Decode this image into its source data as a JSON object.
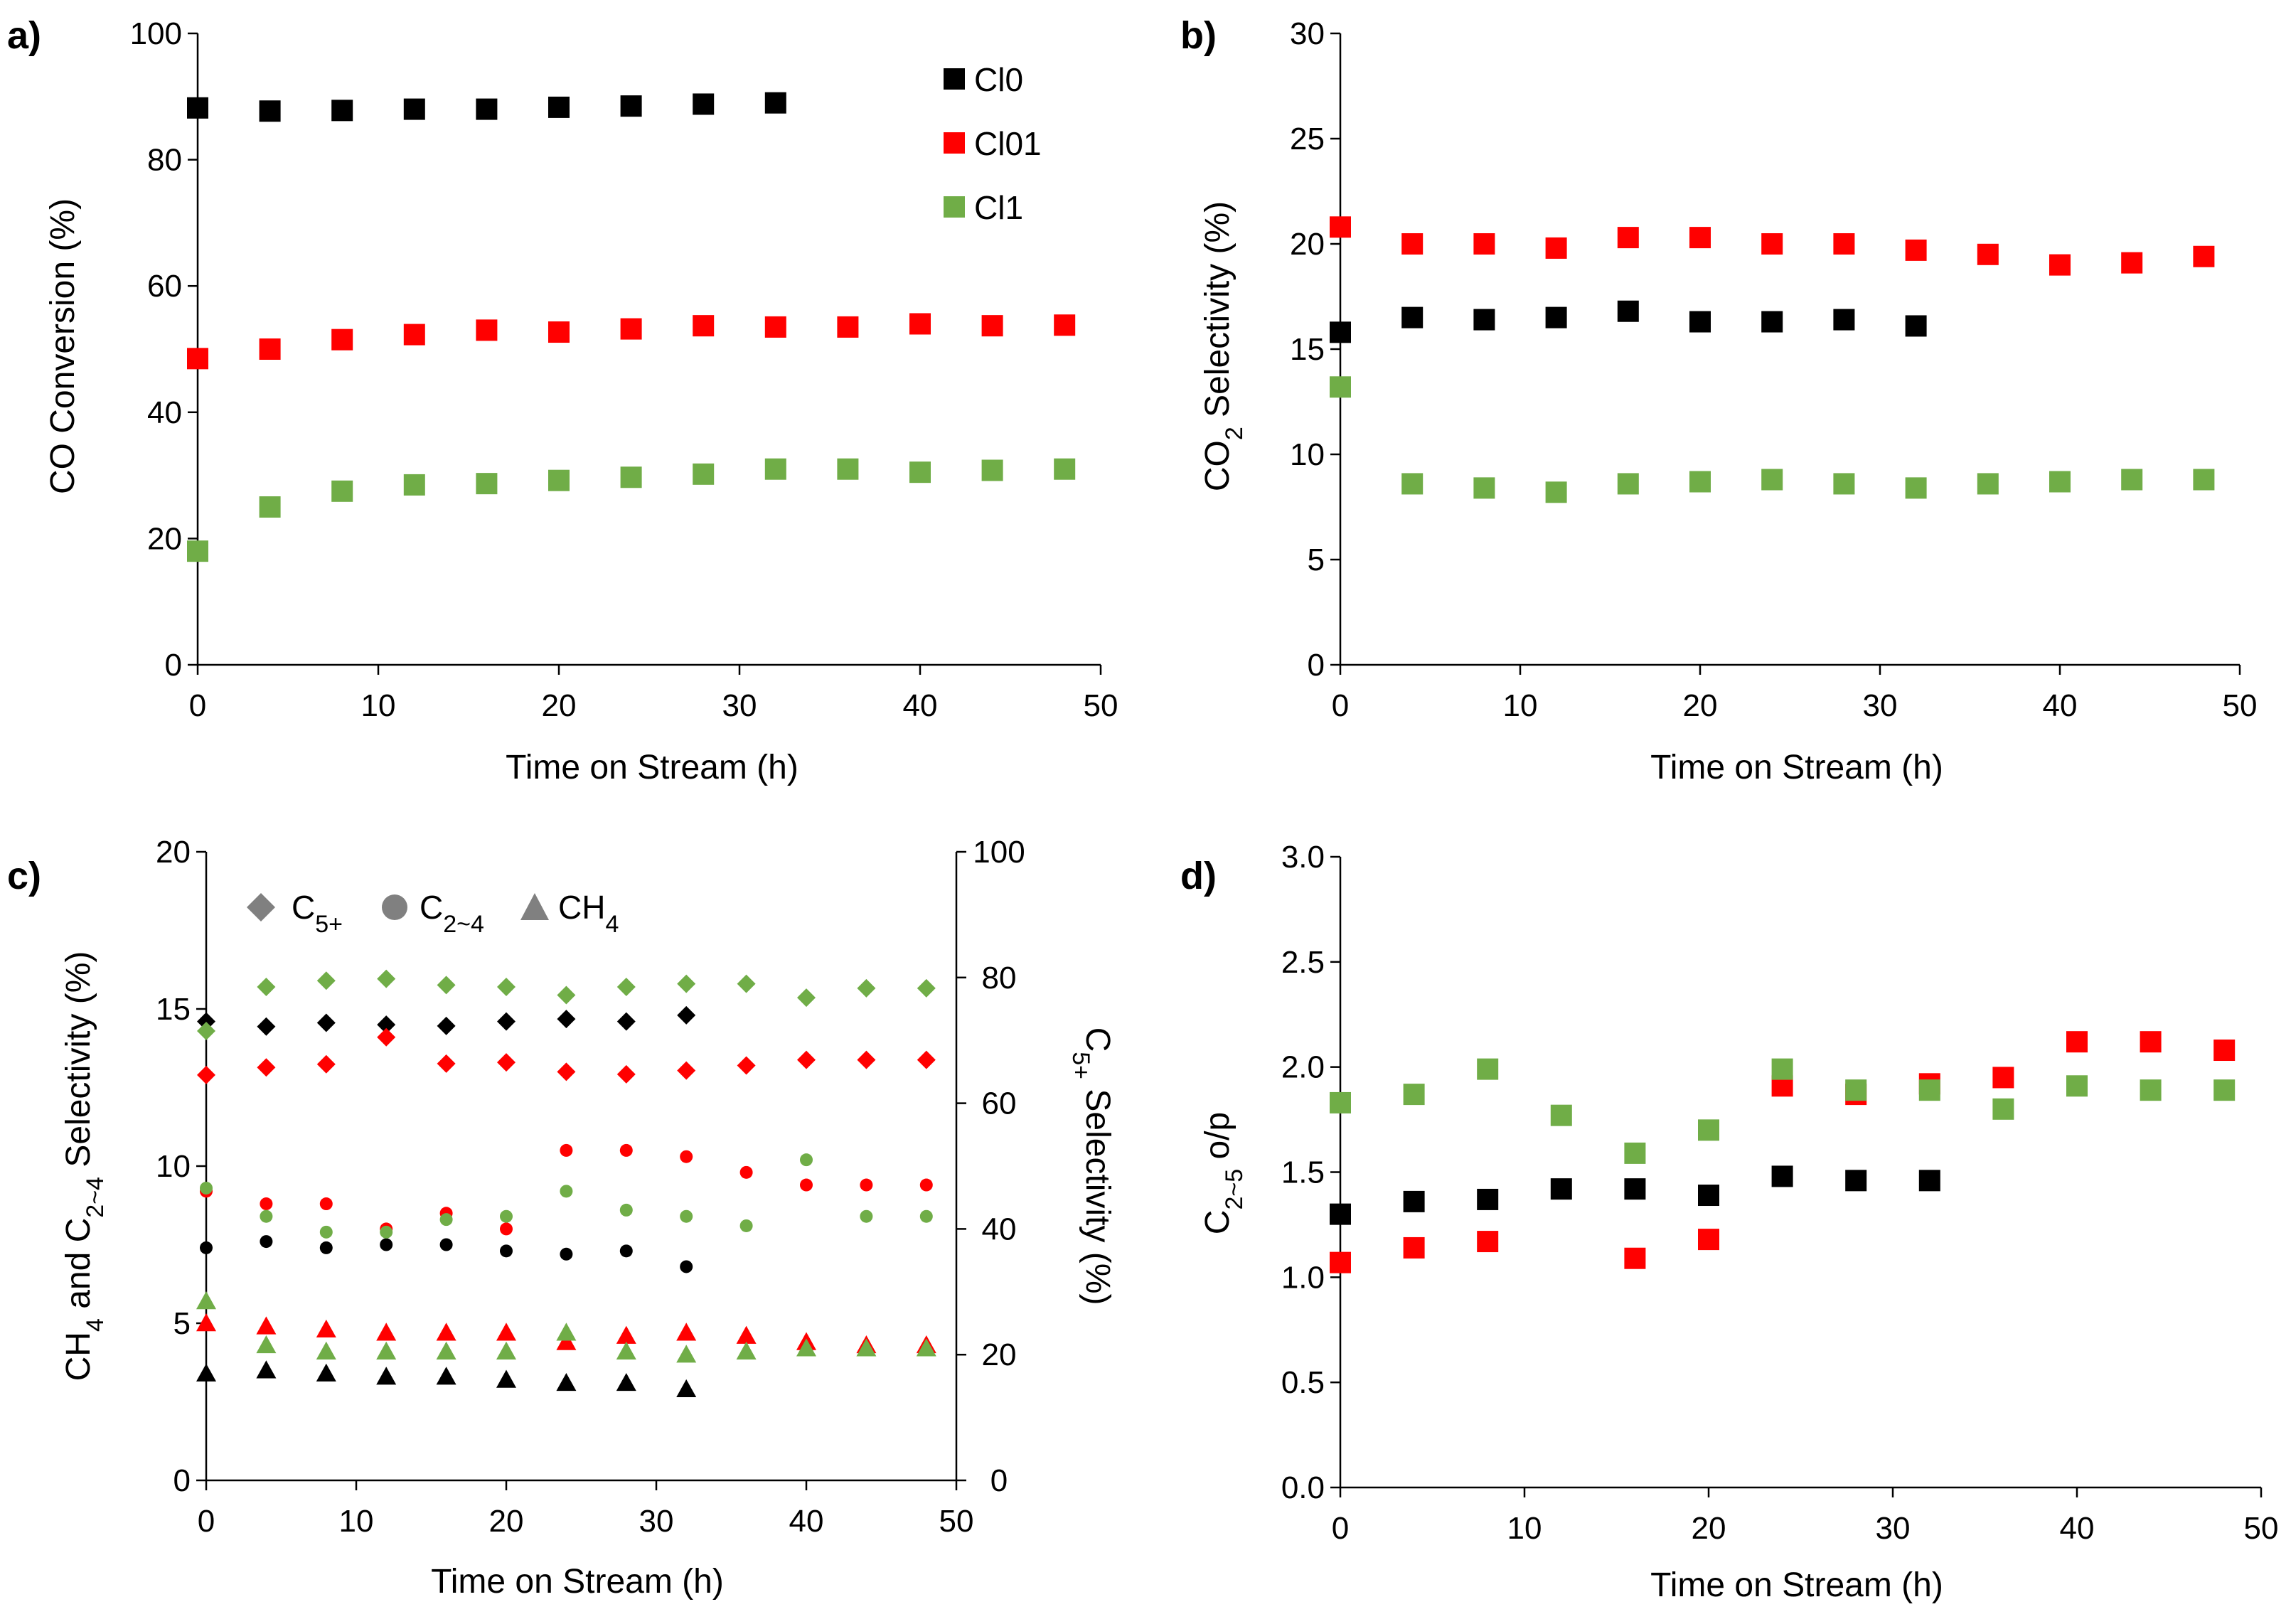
{
  "colors": {
    "Cl0": "#000000",
    "Cl01": "#ff0000",
    "Cl1": "#70ad47",
    "legend_gray": "#808080"
  },
  "chart_data": [
    {
      "id": "a",
      "panel_label": "a)",
      "type": "scatter",
      "xlabel": "Time on Stream (h)",
      "ylabel": "CO Conversion (%)",
      "xlim": [
        0,
        50
      ],
      "ylim": [
        0,
        100
      ],
      "xticks": [
        "0",
        "10",
        "20",
        "30",
        "40",
        "50"
      ],
      "yticks": [
        "0",
        "20",
        "40",
        "60",
        "80",
        "100"
      ],
      "legend": [
        "Cl0",
        "Cl01",
        "Cl1"
      ],
      "series": [
        {
          "name": "Cl0",
          "color": "#000000",
          "marker": "square",
          "x": [
            0,
            4,
            8,
            12,
            16,
            20,
            24,
            28,
            32
          ],
          "y": [
            88.2,
            87.7,
            87.8,
            88.0,
            88.0,
            88.3,
            88.5,
            88.8,
            89.0
          ]
        },
        {
          "name": "Cl01",
          "color": "#ff0000",
          "marker": "square",
          "x": [
            0,
            4,
            8,
            12,
            16,
            20,
            24,
            28,
            32,
            36,
            40,
            44,
            48
          ],
          "y": [
            48.5,
            50.0,
            51.5,
            52.3,
            53.0,
            52.7,
            53.2,
            53.7,
            53.5,
            53.5,
            54.0,
            53.7,
            53.8
          ]
        },
        {
          "name": "Cl1",
          "color": "#70ad47",
          "marker": "square",
          "x": [
            0,
            4,
            8,
            12,
            16,
            20,
            24,
            28,
            32,
            36,
            40,
            44,
            48
          ],
          "y": [
            18.0,
            25.0,
            27.5,
            28.5,
            28.7,
            29.2,
            29.7,
            30.2,
            31.0,
            31.0,
            30.5,
            30.8,
            31.0
          ]
        }
      ]
    },
    {
      "id": "b",
      "panel_label": "b)",
      "type": "scatter",
      "xlabel": "Time on Stream (h)",
      "ylabel_main": "CO",
      "ylabel_sub": "2",
      "ylabel_rest": " Selectivity (%)",
      "xlim": [
        0,
        50
      ],
      "ylim": [
        0,
        30
      ],
      "xticks": [
        "0",
        "10",
        "20",
        "30",
        "40",
        "50"
      ],
      "yticks": [
        "0",
        "5",
        "10",
        "15",
        "20",
        "25",
        "30"
      ],
      "series": [
        {
          "name": "Cl0",
          "color": "#000000",
          "marker": "square",
          "x": [
            0,
            4,
            8,
            12,
            16,
            20,
            24,
            28,
            32
          ],
          "y": [
            15.8,
            16.5,
            16.4,
            16.5,
            16.8,
            16.3,
            16.3,
            16.4,
            16.1
          ]
        },
        {
          "name": "Cl01",
          "color": "#ff0000",
          "marker": "square",
          "x": [
            0,
            4,
            8,
            12,
            16,
            20,
            24,
            28,
            32,
            36,
            40,
            44,
            48
          ],
          "y": [
            20.8,
            20.0,
            20.0,
            19.8,
            20.3,
            20.3,
            20.0,
            20.0,
            19.7,
            19.5,
            19.0,
            19.1,
            19.4
          ]
        },
        {
          "name": "Cl1",
          "color": "#70ad47",
          "marker": "square",
          "x": [
            0,
            4,
            8,
            12,
            16,
            20,
            24,
            28,
            32,
            36,
            40,
            44,
            48
          ],
          "y": [
            13.2,
            8.6,
            8.4,
            8.2,
            8.6,
            8.7,
            8.8,
            8.6,
            8.4,
            8.6,
            8.7,
            8.8,
            8.8
          ]
        }
      ]
    },
    {
      "id": "c",
      "panel_label": "c)",
      "type": "scatter",
      "xlabel": "Time on Stream (h)",
      "ylabel_parts": [
        "CH",
        "4",
        " and C",
        "2~4",
        " Selectivity (%)"
      ],
      "y2label_parts": [
        "C",
        "5+",
        " Selectivity (%)"
      ],
      "xlim": [
        0,
        50
      ],
      "ylim": [
        0,
        20
      ],
      "y2lim": [
        0,
        100
      ],
      "xticks": [
        "0",
        "10",
        "20",
        "30",
        "40",
        "50"
      ],
      "yticks": [
        "0",
        "5",
        "10",
        "15",
        "20"
      ],
      "y2ticks": [
        "0",
        "20",
        "40",
        "60",
        "80",
        "100"
      ],
      "legend": [
        {
          "marker": "diamond",
          "main": "C",
          "sub": "5+"
        },
        {
          "marker": "circle",
          "main": "C",
          "sub": "2~4"
        },
        {
          "marker": "triangle",
          "main": "CH",
          "sub": "4"
        }
      ],
      "series": [
        {
          "name": "Cl0 C5+",
          "color": "#000000",
          "marker": "diamond",
          "axis": "right",
          "x": [
            0,
            4,
            8,
            12,
            16,
            20,
            24,
            28,
            32
          ],
          "y": [
            73.0,
            72.2,
            72.8,
            72.5,
            72.3,
            73.0,
            73.4,
            73.0,
            74.0
          ]
        },
        {
          "name": "Cl01 C5+",
          "color": "#ff0000",
          "marker": "diamond",
          "axis": "right",
          "x": [
            0,
            4,
            8,
            12,
            16,
            20,
            24,
            28,
            32,
            36,
            40,
            44,
            48
          ],
          "y": [
            64.5,
            65.7,
            66.2,
            70.5,
            66.3,
            66.5,
            65.0,
            64.6,
            65.2,
            66.0,
            66.9,
            66.9,
            66.9
          ]
        },
        {
          "name": "Cl1 C5+",
          "color": "#70ad47",
          "marker": "diamond",
          "axis": "right",
          "x": [
            0,
            4,
            8,
            12,
            16,
            20,
            24,
            28,
            32,
            36,
            40,
            44,
            48
          ],
          "y": [
            71.5,
            78.5,
            79.5,
            79.8,
            78.8,
            78.5,
            77.2,
            78.5,
            79.0,
            79.0,
            76.8,
            78.3,
            78.3
          ]
        },
        {
          "name": "Cl0 C2~4",
          "color": "#000000",
          "marker": "circle",
          "axis": "left",
          "x": [
            0,
            4,
            8,
            12,
            16,
            20,
            24,
            28,
            32
          ],
          "y": [
            7.4,
            7.6,
            7.4,
            7.5,
            7.5,
            7.3,
            7.2,
            7.3,
            6.8
          ]
        },
        {
          "name": "Cl01 C2~4",
          "color": "#ff0000",
          "marker": "circle",
          "axis": "left",
          "x": [
            0,
            4,
            8,
            12,
            16,
            20,
            24,
            28,
            32,
            36,
            40,
            44,
            48
          ],
          "y": [
            9.2,
            8.8,
            8.8,
            8.0,
            8.5,
            8.0,
            10.5,
            10.5,
            10.3,
            9.8,
            9.4,
            9.4,
            9.4
          ]
        },
        {
          "name": "Cl1 C2~4",
          "color": "#70ad47",
          "marker": "circle",
          "axis": "left",
          "x": [
            0,
            4,
            8,
            12,
            16,
            20,
            24,
            28,
            32,
            36,
            40,
            44,
            48
          ],
          "y": [
            9.3,
            8.4,
            7.9,
            7.9,
            8.3,
            8.4,
            9.2,
            8.6,
            8.4,
            8.1,
            10.2,
            8.4,
            8.4
          ]
        },
        {
          "name": "Cl0 CH4",
          "color": "#000000",
          "marker": "triangle",
          "axis": "left",
          "x": [
            0,
            4,
            8,
            12,
            16,
            20,
            24,
            28,
            32
          ],
          "y": [
            3.4,
            3.5,
            3.4,
            3.3,
            3.3,
            3.2,
            3.1,
            3.1,
            2.9
          ]
        },
        {
          "name": "Cl01 CH4",
          "color": "#ff0000",
          "marker": "triangle",
          "axis": "left",
          "x": [
            0,
            4,
            8,
            12,
            16,
            20,
            24,
            28,
            32,
            36,
            40,
            44,
            48
          ],
          "y": [
            5.0,
            4.9,
            4.8,
            4.7,
            4.7,
            4.7,
            4.4,
            4.6,
            4.7,
            4.6,
            4.4,
            4.3,
            4.3
          ]
        },
        {
          "name": "Cl1 CH4",
          "color": "#70ad47",
          "marker": "triangle",
          "axis": "left",
          "x": [
            0,
            4,
            8,
            12,
            16,
            20,
            24,
            28,
            32,
            36,
            40,
            44,
            48
          ],
          "y": [
            5.7,
            4.3,
            4.1,
            4.1,
            4.1,
            4.1,
            4.7,
            4.1,
            4.0,
            4.1,
            4.2,
            4.2,
            4.2
          ]
        }
      ]
    },
    {
      "id": "d",
      "panel_label": "d)",
      "type": "scatter",
      "xlabel": "Time on Stream (h)",
      "ylabel_parts": [
        "C",
        "2~5",
        " o/p"
      ],
      "xlim": [
        0,
        50
      ],
      "ylim": [
        0,
        3.0
      ],
      "xticks": [
        "0",
        "10",
        "20",
        "30",
        "40",
        "50"
      ],
      "yticks": [
        "0.0",
        "0.5",
        "1.0",
        "1.5",
        "2.0",
        "2.5",
        "3.0"
      ],
      "series": [
        {
          "name": "Cl0",
          "color": "#000000",
          "marker": "square",
          "x": [
            0,
            4,
            8,
            12,
            16,
            20,
            24,
            28,
            32
          ],
          "y": [
            1.3,
            1.36,
            1.37,
            1.42,
            1.42,
            1.39,
            1.48,
            1.46,
            1.46
          ]
        },
        {
          "name": "Cl01",
          "color": "#ff0000",
          "marker": "square",
          "x": [
            0,
            4,
            8,
            12,
            16,
            20,
            24,
            28,
            32,
            36,
            40,
            44,
            48
          ],
          "y": [
            1.07,
            1.14,
            1.17,
            null,
            1.09,
            1.18,
            1.91,
            1.87,
            1.92,
            1.95,
            2.12,
            2.12,
            2.08
          ]
        },
        {
          "name": "Cl1",
          "color": "#70ad47",
          "marker": "square",
          "x": [
            0,
            4,
            8,
            12,
            16,
            20,
            24,
            28,
            32,
            36,
            40,
            44,
            48
          ],
          "y": [
            1.83,
            1.87,
            1.99,
            1.77,
            1.59,
            1.7,
            1.99,
            1.89,
            1.89,
            1.8,
            1.91,
            1.89,
            1.89
          ]
        }
      ]
    }
  ]
}
